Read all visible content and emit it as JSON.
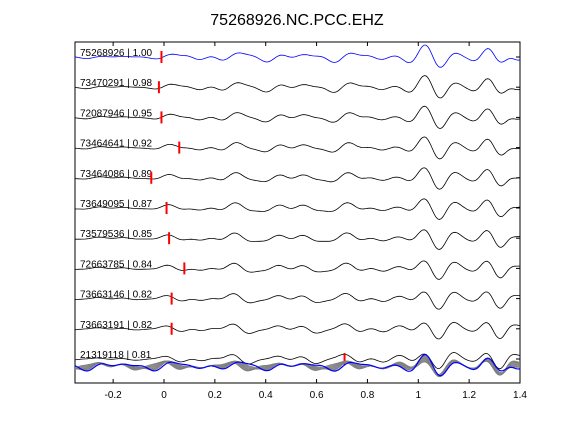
{
  "chart_data": {
    "type": "line",
    "title": "75268926.NC.PCC.EHZ",
    "xlabel": "",
    "ylabel": "",
    "xlim": [
      -0.35,
      1.4
    ],
    "xticks": [
      -0.2,
      0,
      0.2,
      0.4,
      0.6,
      0.8,
      1,
      1.2,
      1.4
    ],
    "xtick_labels": [
      "-0.2",
      "0",
      "0.2",
      "0.4",
      "0.6",
      "0.8",
      "1",
      "1.2",
      "1.4"
    ],
    "grid": false,
    "colors": {
      "reference": "#0000ff",
      "trace": "#000000",
      "marker": "#ff0000",
      "stack": "#808080"
    },
    "series": [
      {
        "label": "75268926 | 1.00",
        "pick_time": -0.01,
        "reference": true
      },
      {
        "label": "73470291 | 0.98",
        "pick_time": -0.02
      },
      {
        "label": "72087946 | 0.95",
        "pick_time": -0.01
      },
      {
        "label": "73464641 | 0.92",
        "pick_time": 0.06
      },
      {
        "label": "73464086 | 0.89",
        "pick_time": -0.05
      },
      {
        "label": "73649095 | 0.87",
        "pick_time": 0.01
      },
      {
        "label": "73579536 | 0.85",
        "pick_time": 0.02
      },
      {
        "label": "72663785 | 0.84",
        "pick_time": 0.08
      },
      {
        "label": "73663146 | 0.82",
        "pick_time": 0.03
      },
      {
        "label": "73663191 | 0.82",
        "pick_time": 0.03
      },
      {
        "label": "21319118 | 0.81",
        "pick_time": 0.71
      }
    ],
    "overlay": {
      "description_visible": false,
      "trace_count": 11
    }
  }
}
